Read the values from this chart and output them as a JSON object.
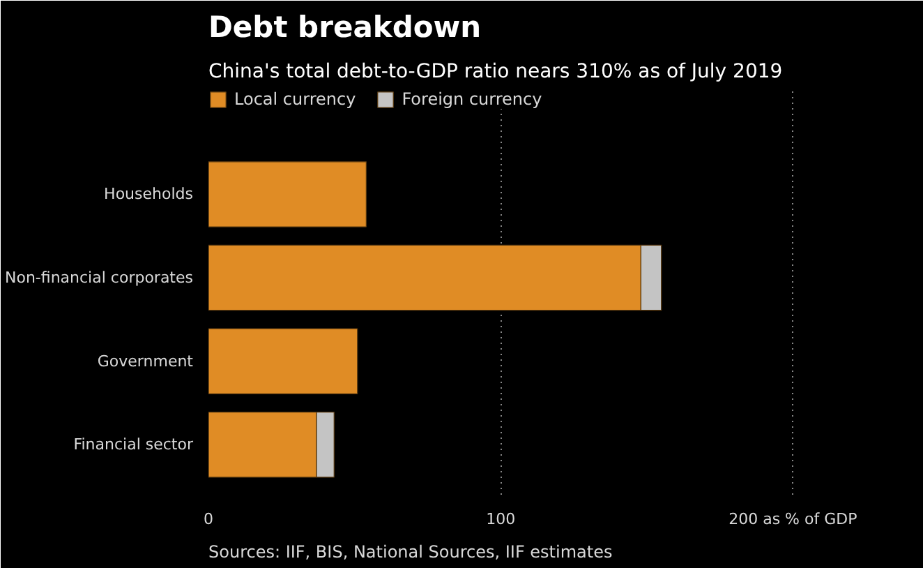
{
  "chart_data": {
    "type": "bar",
    "orientation": "horizontal",
    "stacked": true,
    "title": "Debt breakdown",
    "subtitle": "China's total debt-to-GDP ratio nears 310% as of July 2019",
    "categories": [
      "Households",
      "Non-financial corporates",
      "Government",
      "Financial sector"
    ],
    "series": [
      {
        "name": "Local currency",
        "color": "#e08c25",
        "values": [
          54,
          148,
          51,
          37
        ]
      },
      {
        "name": "Foreign currency",
        "color": "#c4c4c4",
        "values": [
          null,
          7,
          null,
          6
        ]
      }
    ],
    "xlim": [
      0,
      240
    ],
    "xticks": [
      0,
      100,
      {
        "value": 200,
        "label": "200 as % of GDP"
      }
    ],
    "grid": "x",
    "legend": "top left",
    "annotations": [
      "Sources: IIF, BIS, National Sources, IIF estimates"
    ]
  }
}
